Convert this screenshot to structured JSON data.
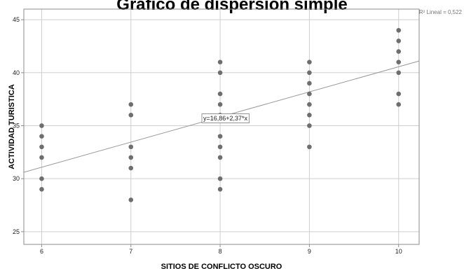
{
  "chart_data": {
    "type": "scatter",
    "title": "Gráfico de dispersión simple",
    "xlabel": "SITIOS DE CONFLICTO OSCURO",
    "ylabel": "ACTIVIDAD TURISTICA",
    "xlim": [
      5.8,
      10.23
    ],
    "ylim": [
      23.8,
      46.0
    ],
    "x_ticks": [
      "6",
      "7",
      "8",
      "9",
      "10"
    ],
    "y_ticks": [
      "25",
      "30",
      "35",
      "40",
      "45"
    ],
    "grid": true,
    "point_color": "#6e6e6e",
    "fit_color": "#999999",
    "points": [
      [
        6,
        29
      ],
      [
        6,
        30
      ],
      [
        6,
        32
      ],
      [
        6,
        33
      ],
      [
        6,
        34
      ],
      [
        6,
        35
      ],
      [
        7,
        28
      ],
      [
        7,
        31
      ],
      [
        7,
        32
      ],
      [
        7,
        33
      ],
      [
        7,
        36
      ],
      [
        7,
        37
      ],
      [
        8,
        29
      ],
      [
        8,
        30
      ],
      [
        8,
        32
      ],
      [
        8,
        33
      ],
      [
        8,
        34
      ],
      [
        8,
        36
      ],
      [
        8,
        37
      ],
      [
        8,
        38
      ],
      [
        8,
        40
      ],
      [
        8,
        41
      ],
      [
        9,
        33
      ],
      [
        9,
        35
      ],
      [
        9,
        36
      ],
      [
        9,
        37
      ],
      [
        9,
        38
      ],
      [
        9,
        39
      ],
      [
        9,
        40
      ],
      [
        9,
        41
      ],
      [
        10,
        37
      ],
      [
        10,
        38
      ],
      [
        10,
        40
      ],
      [
        10,
        41
      ],
      [
        10,
        42
      ],
      [
        10,
        43
      ],
      [
        10,
        44
      ]
    ],
    "fit": {
      "intercept": 16.86,
      "slope": 2.37
    },
    "equation_label": "y=16,86+2,37*x",
    "r2_label": "R² Lineal = 0,522"
  }
}
